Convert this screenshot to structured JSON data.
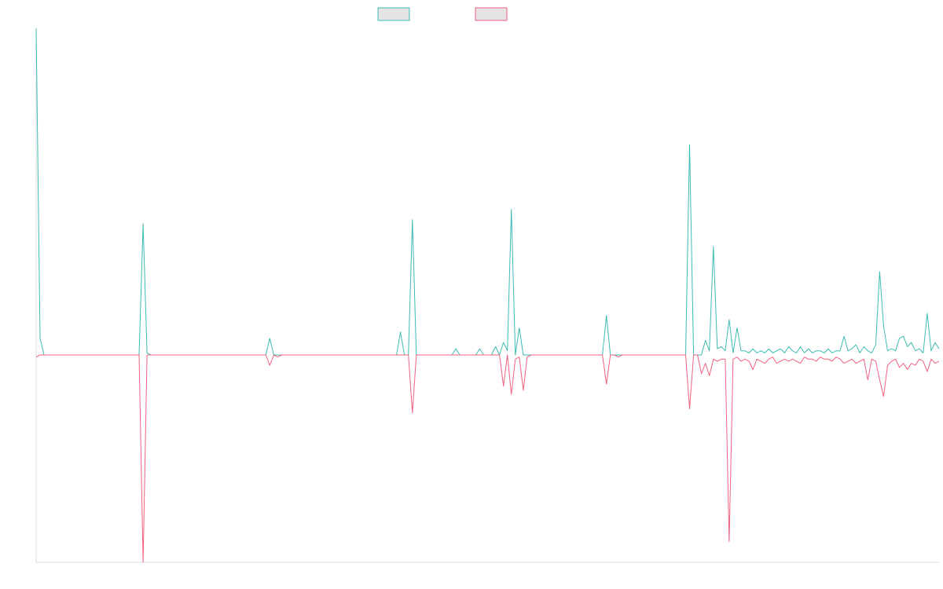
{
  "colors": {
    "series_a": "#3dbcb3",
    "series_b": "#f0617f",
    "swatch_fill": "#e4e4e4",
    "axis": "#dddddd"
  },
  "legend": {
    "placement": "top-center"
  },
  "chart_data": {
    "type": "line",
    "title": "",
    "xlabel": "",
    "ylabel": "",
    "grid": false,
    "x_count": 229,
    "ylim": [
      -1.0,
      1.57
    ],
    "series": [
      {
        "color": "#3dbcb3",
        "points": [
          [
            0,
            1.57
          ],
          [
            1,
            0.08
          ],
          [
            2,
            0.0
          ],
          [
            26,
            0.0
          ],
          [
            27,
            0.63
          ],
          [
            28,
            0.01
          ],
          [
            29,
            0.0
          ],
          [
            58,
            0.0
          ],
          [
            59,
            0.08
          ],
          [
            60,
            0.0
          ],
          [
            91,
            0.0
          ],
          [
            92,
            0.11
          ],
          [
            93,
            0.0
          ],
          [
            94,
            0.0
          ],
          [
            95,
            0.65
          ],
          [
            96,
            0.0
          ],
          [
            105,
            0.0
          ],
          [
            106,
            0.03
          ],
          [
            107,
            0.0
          ],
          [
            111,
            0.0
          ],
          [
            112,
            0.03
          ],
          [
            113,
            0.0
          ],
          [
            115,
            0.0
          ],
          [
            116,
            0.04
          ],
          [
            117,
            0.0
          ],
          [
            118,
            0.06
          ],
          [
            119,
            0.02
          ],
          [
            120,
            0.7
          ],
          [
            121,
            0.0
          ],
          [
            122,
            0.13
          ],
          [
            123,
            0.0
          ],
          [
            143,
            0.0
          ],
          [
            144,
            0.19
          ],
          [
            145,
            0.0
          ],
          [
            163,
            0.0
          ],
          [
            164,
            0.0
          ],
          [
            165,
            1.01
          ],
          [
            166,
            0.0
          ],
          [
            167,
            0.0
          ],
          [
            168,
            0.0
          ],
          [
            169,
            0.07
          ],
          [
            170,
            0.02
          ],
          [
            171,
            0.52
          ],
          [
            172,
            0.03
          ],
          [
            173,
            0.04
          ],
          [
            174,
            0.02
          ],
          [
            175,
            0.17
          ],
          [
            176,
            0.01
          ],
          [
            177,
            0.13
          ],
          [
            178,
            0.02
          ],
          [
            179,
            0.02
          ],
          [
            180,
            0.01
          ],
          [
            181,
            0.03
          ],
          [
            182,
            0.01
          ],
          [
            183,
            0.02
          ],
          [
            184,
            0.01
          ],
          [
            185,
            0.03
          ],
          [
            186,
            0.01
          ],
          [
            187,
            0.02
          ],
          [
            188,
            0.03
          ],
          [
            189,
            0.01
          ],
          [
            190,
            0.04
          ],
          [
            191,
            0.02
          ],
          [
            192,
            0.01
          ],
          [
            193,
            0.04
          ],
          [
            194,
            0.01
          ],
          [
            195,
            0.03
          ],
          [
            196,
            0.01
          ],
          [
            197,
            0.02
          ],
          [
            198,
            0.02
          ],
          [
            199,
            0.01
          ],
          [
            200,
            0.03
          ],
          [
            201,
            0.01
          ],
          [
            202,
            0.02
          ],
          [
            203,
            0.02
          ],
          [
            204,
            0.09
          ],
          [
            205,
            0.02
          ],
          [
            206,
            0.03
          ],
          [
            207,
            0.05
          ],
          [
            208,
            0.01
          ],
          [
            209,
            0.04
          ],
          [
            210,
            0.02
          ],
          [
            211,
            0.01
          ],
          [
            212,
            0.05
          ],
          [
            213,
            0.4
          ],
          [
            214,
            0.14
          ],
          [
            215,
            0.02
          ],
          [
            216,
            0.03
          ],
          [
            217,
            0.02
          ],
          [
            218,
            0.08
          ],
          [
            219,
            0.09
          ],
          [
            220,
            0.04
          ],
          [
            221,
            0.06
          ],
          [
            222,
            0.02
          ],
          [
            223,
            0.03
          ],
          [
            224,
            0.01
          ],
          [
            225,
            0.2
          ],
          [
            226,
            0.02
          ],
          [
            227,
            0.06
          ],
          [
            228,
            0.03
          ]
        ]
      },
      {
        "color": "#f0617f",
        "points": [
          [
            0,
            -0.01
          ],
          [
            1,
            0.0
          ],
          [
            26,
            0.0
          ],
          [
            27,
            -1.0
          ],
          [
            28,
            0.0
          ],
          [
            58,
            0.0
          ],
          [
            59,
            -0.05
          ],
          [
            60,
            0.0
          ],
          [
            61,
            -0.01
          ],
          [
            62,
            0.0
          ],
          [
            94,
            0.0
          ],
          [
            95,
            -0.28
          ],
          [
            96,
            0.0
          ],
          [
            117,
            0.0
          ],
          [
            118,
            -0.15
          ],
          [
            119,
            0.0
          ],
          [
            120,
            -0.19
          ],
          [
            121,
            -0.02
          ],
          [
            122,
            -0.01
          ],
          [
            123,
            -0.17
          ],
          [
            124,
            -0.01
          ],
          [
            125,
            0.0
          ],
          [
            143,
            0.0
          ],
          [
            144,
            -0.14
          ],
          [
            145,
            0.0
          ],
          [
            146,
            0.0
          ],
          [
            147,
            -0.01
          ],
          [
            148,
            0.0
          ],
          [
            164,
            0.0
          ],
          [
            165,
            -0.26
          ],
          [
            166,
            0.0
          ],
          [
            167,
            0.0
          ],
          [
            168,
            -0.09
          ],
          [
            169,
            -0.04
          ],
          [
            170,
            -0.1
          ],
          [
            171,
            -0.02
          ],
          [
            172,
            -0.03
          ],
          [
            173,
            -0.02
          ],
          [
            174,
            -0.02
          ],
          [
            175,
            -0.9
          ],
          [
            176,
            -0.02
          ],
          [
            177,
            -0.01
          ],
          [
            178,
            -0.03
          ],
          [
            179,
            -0.02
          ],
          [
            180,
            -0.03
          ],
          [
            181,
            -0.07
          ],
          [
            182,
            -0.02
          ],
          [
            183,
            -0.03
          ],
          [
            184,
            -0.04
          ],
          [
            185,
            -0.02
          ],
          [
            186,
            -0.01
          ],
          [
            187,
            -0.04
          ],
          [
            188,
            -0.03
          ],
          [
            189,
            -0.02
          ],
          [
            190,
            -0.03
          ],
          [
            191,
            -0.02
          ],
          [
            192,
            -0.03
          ],
          [
            193,
            -0.04
          ],
          [
            194,
            -0.01
          ],
          [
            195,
            -0.02
          ],
          [
            196,
            -0.02
          ],
          [
            197,
            -0.03
          ],
          [
            198,
            -0.01
          ],
          [
            199,
            -0.02
          ],
          [
            200,
            -0.02
          ],
          [
            201,
            -0.03
          ],
          [
            202,
            -0.01
          ],
          [
            203,
            -0.02
          ],
          [
            204,
            -0.04
          ],
          [
            205,
            -0.03
          ],
          [
            206,
            -0.02
          ],
          [
            207,
            -0.04
          ],
          [
            208,
            -0.03
          ],
          [
            209,
            -0.02
          ],
          [
            210,
            -0.12
          ],
          [
            211,
            -0.02
          ],
          [
            212,
            -0.03
          ],
          [
            213,
            -0.12
          ],
          [
            214,
            -0.2
          ],
          [
            215,
            -0.05
          ],
          [
            216,
            -0.03
          ],
          [
            217,
            -0.02
          ],
          [
            218,
            -0.06
          ],
          [
            219,
            -0.04
          ],
          [
            220,
            -0.07
          ],
          [
            221,
            -0.04
          ],
          [
            222,
            -0.05
          ],
          [
            223,
            -0.02
          ],
          [
            224,
            -0.03
          ],
          [
            225,
            -0.08
          ],
          [
            226,
            -0.02
          ],
          [
            227,
            -0.04
          ],
          [
            228,
            -0.03
          ]
        ]
      }
    ]
  }
}
